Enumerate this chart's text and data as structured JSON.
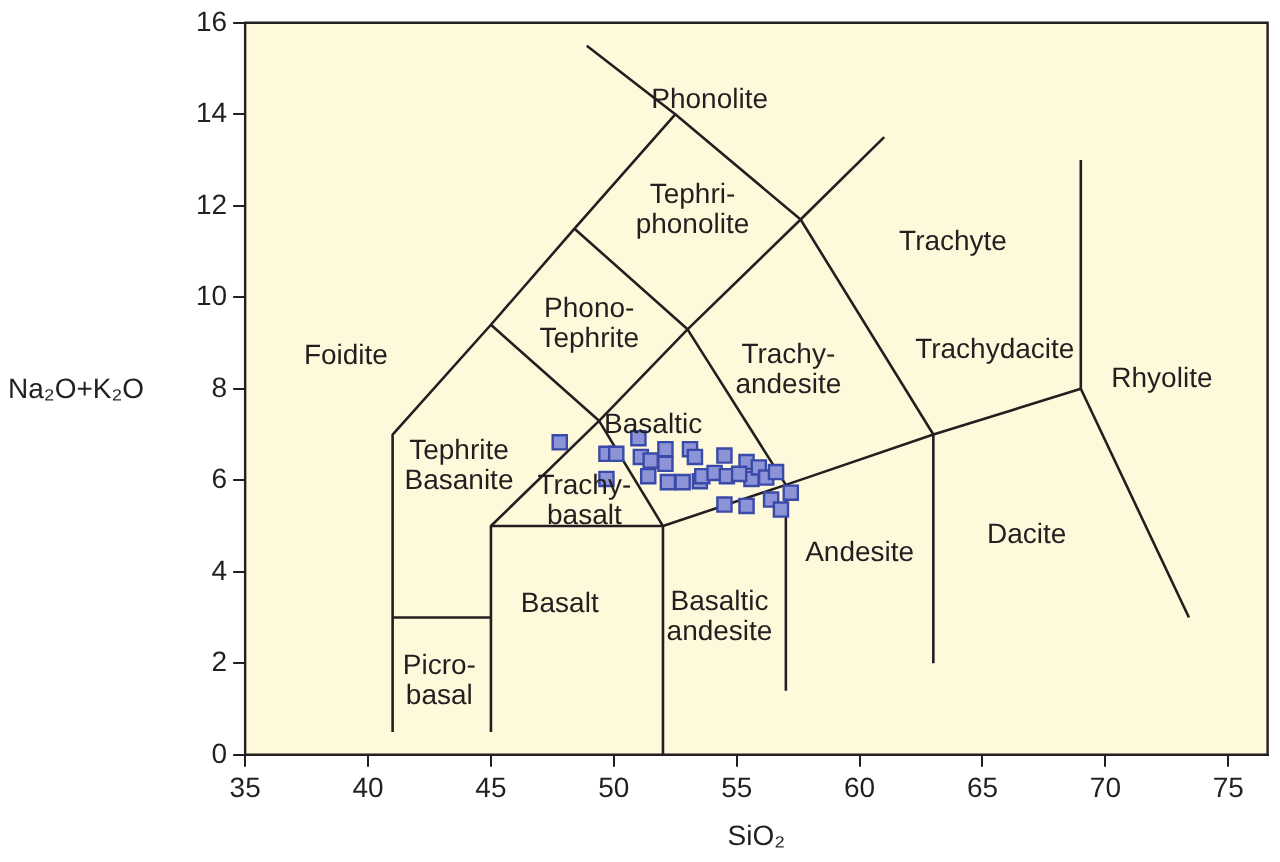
{
  "chart_data": {
    "type": "scatter",
    "xlabel": "SiO₂",
    "ylabel": "Na₂O+K₂O",
    "xlim": [
      35,
      76.6
    ],
    "ylim": [
      0,
      16
    ],
    "xticks": [
      35,
      40,
      45,
      50,
      55,
      60,
      65,
      70,
      75
    ],
    "yticks": [
      0,
      2,
      4,
      6,
      8,
      10,
      12,
      14,
      16
    ],
    "grid": false,
    "legend": false,
    "series": [
      {
        "type": "scatter",
        "marker": "square",
        "color": "#8c93d6",
        "x": [
          47.8,
          49.7,
          50.1,
          49.7,
          51.0,
          51.1,
          51.5,
          52.1,
          52.1,
          51.4,
          52.2,
          52.8,
          53.1,
          53.3,
          53.5,
          53.6,
          54.1,
          54.5,
          54.6,
          55.4,
          55.6,
          55.9,
          56.2,
          56.6,
          57.2,
          56.4,
          56.8,
          54.5,
          55.4,
          55.1
        ],
        "values": [
          6.83,
          6.58,
          6.58,
          6.03,
          6.92,
          6.51,
          6.43,
          6.68,
          6.36,
          6.09,
          5.96,
          5.96,
          6.68,
          6.51,
          5.98,
          6.09,
          6.16,
          6.54,
          6.09,
          6.4,
          6.03,
          6.28,
          6.06,
          6.18,
          5.73,
          5.58,
          5.36,
          5.47,
          5.44,
          6.14
        ]
      },
      {
        "type": "line",
        "color": "#231f20",
        "x": [
          41,
          41,
          45,
          48.4,
          52.5,
          48.9
        ],
        "values": [
          0.5,
          7,
          9.4,
          11.5,
          14,
          15.5
        ]
      },
      {
        "type": "line",
        "color": "#231f20",
        "x": [
          41,
          45
        ],
        "values": [
          3,
          3
        ]
      },
      {
        "type": "line",
        "color": "#231f20",
        "x": [
          45,
          45,
          49.4,
          45
        ],
        "values": [
          0.5,
          5,
          7.3,
          9.4
        ]
      },
      {
        "type": "line",
        "color": "#231f20",
        "x": [
          45,
          52,
          57,
          63,
          69,
          73.4
        ],
        "values": [
          5,
          5,
          5.9,
          7,
          8,
          3
        ]
      },
      {
        "type": "line",
        "color": "#231f20",
        "x": [
          52,
          52,
          49.4,
          53,
          48.4
        ],
        "values": [
          0,
          5,
          7.3,
          9.3,
          11.5
        ]
      },
      {
        "type": "line",
        "color": "#231f20",
        "x": [
          57,
          57,
          53,
          57.6,
          52.5
        ],
        "values": [
          1.4,
          5.9,
          9.3,
          11.7,
          14
        ]
      },
      {
        "type": "line",
        "color": "#231f20",
        "x": [
          63,
          63,
          57.6,
          61
        ],
        "values": [
          2,
          7,
          11.7,
          13.5
        ]
      },
      {
        "type": "line",
        "color": "#231f20",
        "x": [
          69,
          69
        ],
        "values": [
          8,
          13
        ]
      }
    ],
    "annotations": [
      "Phonolite",
      "Tephri-\nphonolite",
      "Phono-\nTephrite",
      "Foidite",
      "Trachy-\nandesite",
      "Trachyte",
      "Trachydacite",
      "Rhyolite",
      "Dacite",
      "Andesite",
      "Basaltic\nandesite",
      "Basalt",
      "Picro-\nbasal",
      "Tephrite\nBasanite",
      "Trachy-\nbasalt",
      "Basaltic"
    ]
  }
}
